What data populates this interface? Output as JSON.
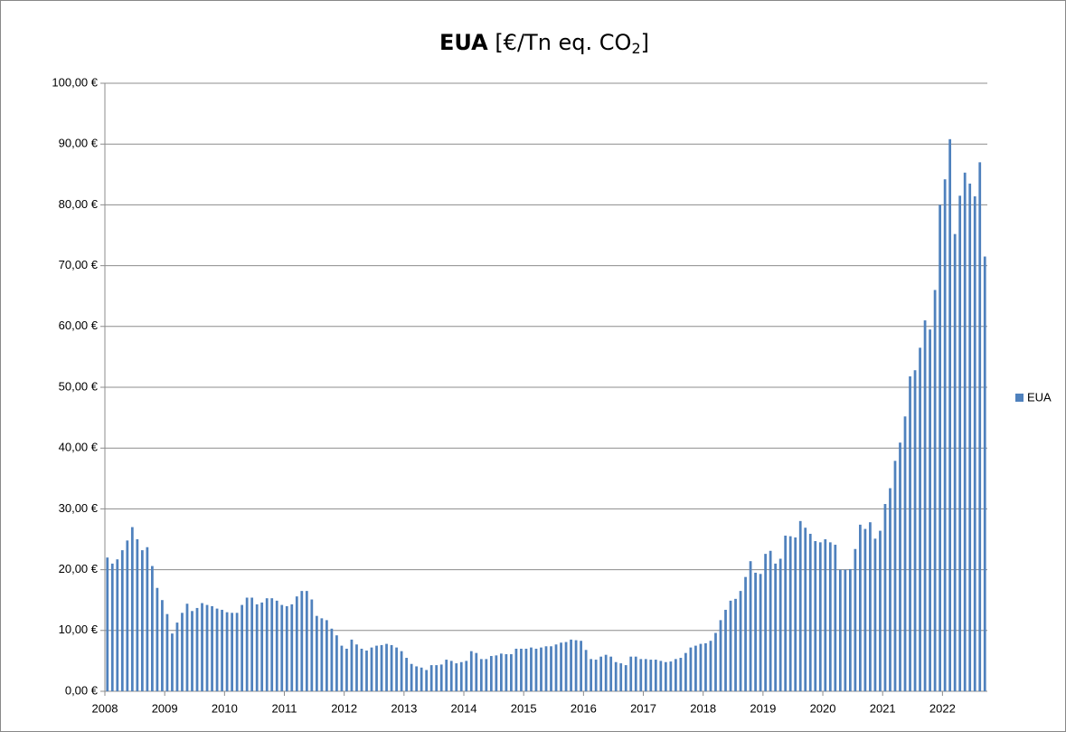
{
  "chart_data": {
    "type": "bar",
    "title": [
      "EUA",
      " [€/Tn eq. CO",
      "2",
      "]"
    ],
    "categories": [
      "2008",
      null,
      null,
      null,
      null,
      null,
      null,
      null,
      null,
      null,
      null,
      null,
      "2009",
      null,
      null,
      null,
      null,
      null,
      null,
      null,
      null,
      null,
      null,
      null,
      "2010",
      null,
      null,
      null,
      null,
      null,
      null,
      null,
      null,
      null,
      null,
      null,
      "2011",
      null,
      null,
      null,
      null,
      null,
      null,
      null,
      null,
      null,
      null,
      null,
      "2012",
      null,
      null,
      null,
      null,
      null,
      null,
      null,
      null,
      null,
      null,
      null,
      "2013",
      null,
      null,
      null,
      null,
      null,
      null,
      null,
      null,
      null,
      null,
      null,
      "2014",
      null,
      null,
      null,
      null,
      null,
      null,
      null,
      null,
      null,
      null,
      null,
      "2015",
      null,
      null,
      null,
      null,
      null,
      null,
      null,
      null,
      null,
      null,
      null,
      "2016",
      null,
      null,
      null,
      null,
      null,
      null,
      null,
      null,
      null,
      null,
      null,
      "2017",
      null,
      null,
      null,
      null,
      null,
      null,
      null,
      null,
      null,
      null,
      null,
      "2018",
      null,
      null,
      null,
      null,
      null,
      null,
      null,
      null,
      null,
      null,
      null,
      "2019",
      null,
      null,
      null,
      null,
      null,
      null,
      null,
      null,
      null,
      null,
      null,
      "2020",
      null,
      null,
      null,
      null,
      null,
      null,
      null,
      null,
      null,
      null,
      null,
      "2021",
      null,
      null,
      null,
      null,
      null,
      null,
      null,
      null,
      null,
      null,
      null,
      "2022",
      null,
      null,
      null,
      null,
      null,
      null,
      null,
      null
    ],
    "series": [
      {
        "name": "EUA",
        "color": "#4f81bd",
        "values": [
          22,
          21,
          21.7,
          23.2,
          24.8,
          27,
          25,
          23.2,
          23.7,
          20.6,
          17,
          15,
          12.7,
          9.5,
          11.3,
          12.9,
          14.4,
          13.2,
          13.7,
          14.5,
          14.2,
          14,
          13.6,
          13.4,
          13,
          12.9,
          12.9,
          14.2,
          15.4,
          15.4,
          14.3,
          14.6,
          15.3,
          15.3,
          14.9,
          14.2,
          14,
          14.3,
          15.6,
          16.5,
          16.5,
          15.1,
          12.4,
          12,
          11.7,
          10.3,
          9.2,
          7.5,
          7,
          8.5,
          7.7,
          7,
          6.7,
          7.2,
          7.5,
          7.6,
          7.8,
          7.6,
          7.2,
          6.6,
          5.5,
          4.5,
          4.1,
          3.9,
          3.5,
          4.3,
          4.3,
          4.4,
          5.2,
          5,
          4.6,
          4.8,
          5,
          6.6,
          6.3,
          5.3,
          5.3,
          5.8,
          5.9,
          6.2,
          6.1,
          6.1,
          7,
          7,
          7,
          7.2,
          7,
          7.2,
          7.4,
          7.4,
          7.7,
          8,
          8.1,
          8.5,
          8.4,
          8.3,
          6.8,
          5.3,
          5.2,
          5.7,
          6,
          5.7,
          4.8,
          4.6,
          4.3,
          5.7,
          5.7,
          5.3,
          5.3,
          5.2,
          5.2,
          5,
          4.8,
          4.9,
          5.3,
          5.5,
          6.3,
          7.2,
          7.5,
          7.8,
          7.9,
          8.3,
          9.6,
          11.7,
          13.4,
          14.9,
          15.2,
          16.5,
          18.8,
          21.4,
          19.5,
          19.3,
          22.6,
          23.1,
          21,
          21.8,
          25.6,
          25.5,
          25.3,
          28,
          26.9,
          25.9,
          24.7,
          24.5,
          25,
          24.5,
          24.1,
          20,
          20,
          20.1,
          23.4,
          27.4,
          26.7,
          27.8,
          25.1,
          26.4,
          30.8,
          33.4,
          37.9,
          40.9,
          45.2,
          51.8,
          52.8,
          56.5,
          61,
          59.5,
          66,
          80,
          84.2,
          90.8,
          75.2,
          81.5,
          85.3,
          83.5,
          81.4,
          87,
          71.5
        ]
      }
    ],
    "ylim": [
      0,
      100
    ],
    "yticks": [
      {
        "value": 0,
        "label": "0,00 €"
      },
      {
        "value": 10,
        "label": "10,00 €"
      },
      {
        "value": 20,
        "label": "20,00 €"
      },
      {
        "value": 30,
        "label": "30,00 €"
      },
      {
        "value": 40,
        "label": "40,00 €"
      },
      {
        "value": 50,
        "label": "50,00 €"
      },
      {
        "value": 60,
        "label": "60,00 €"
      },
      {
        "value": 70,
        "label": "70,00 €"
      },
      {
        "value": 80,
        "label": "80,00 €"
      },
      {
        "value": 90,
        "label": "90,00 €"
      },
      {
        "value": 100,
        "label": "100,00 €"
      }
    ],
    "grid": true,
    "legend": "right"
  }
}
